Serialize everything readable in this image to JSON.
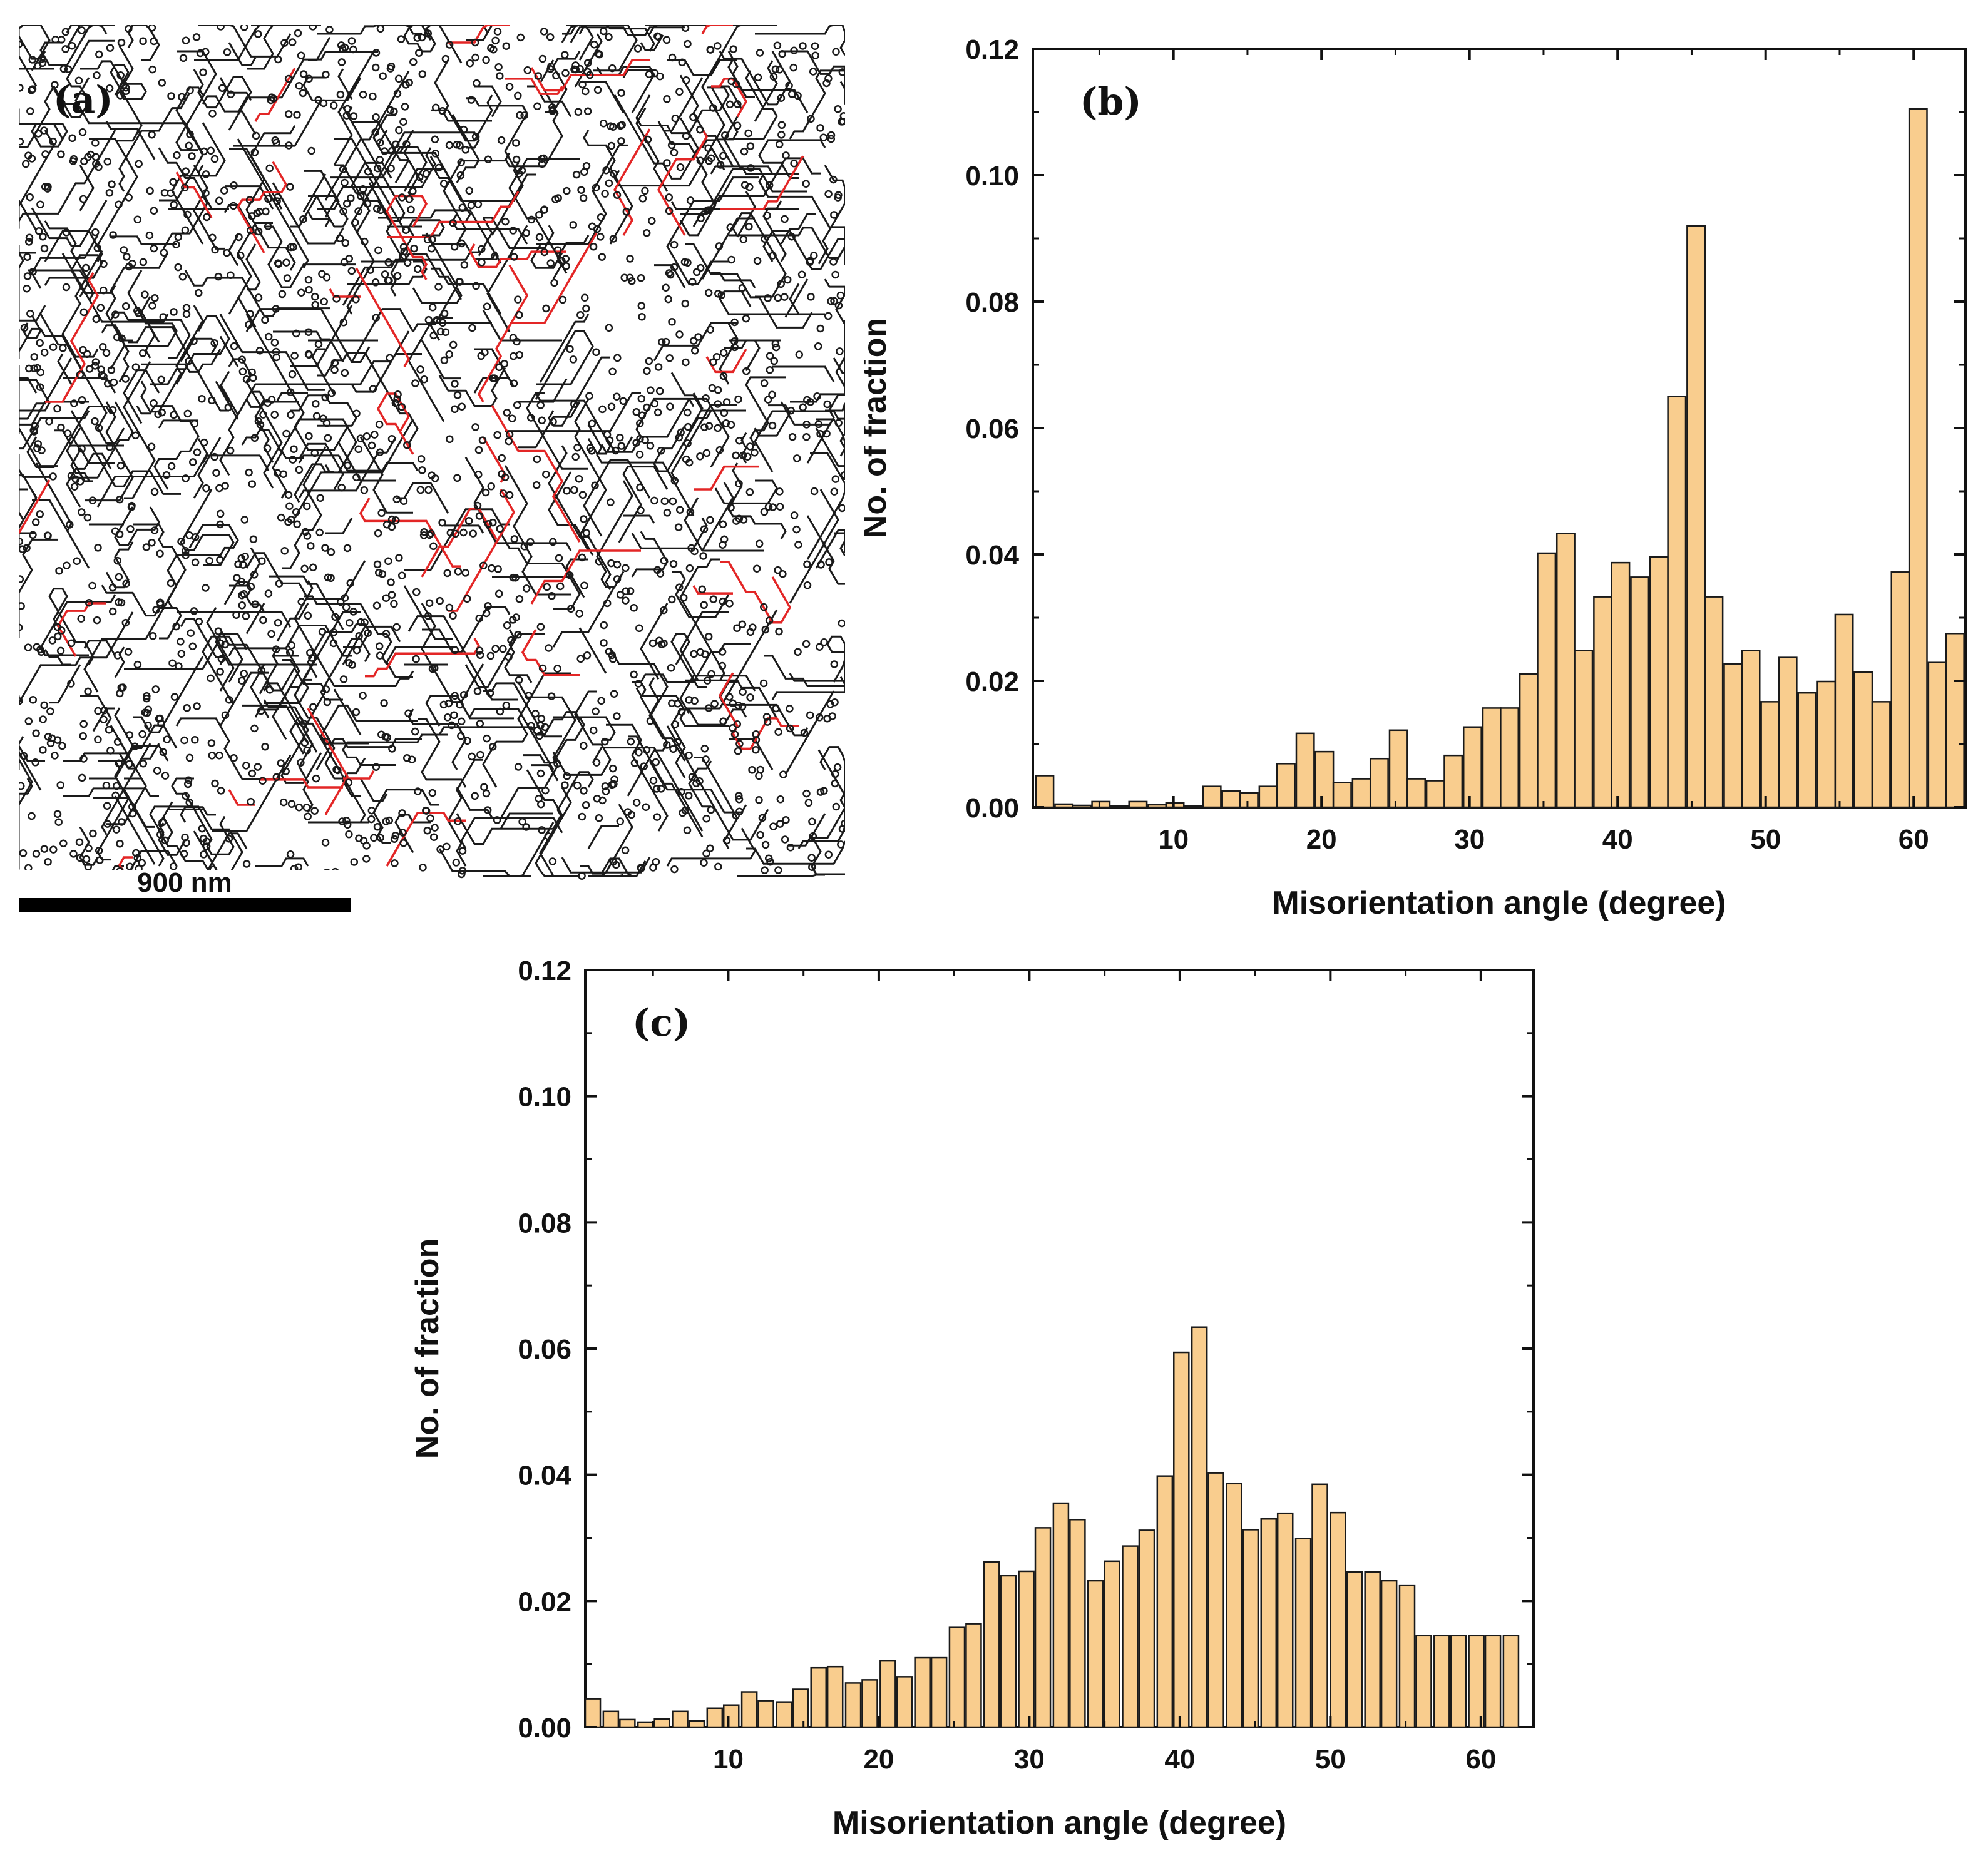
{
  "panel_a": {
    "label": "(a)",
    "scale_bar_label": "900 nm",
    "colors": {
      "boundary": "#1a1a1a",
      "twin_boundary": "#e32626",
      "background": "#ffffff"
    }
  },
  "chart_data": [
    {
      "id": "b",
      "type": "bar",
      "panel_label": "(b)",
      "xlabel": "Misorientation angle (degree)",
      "ylabel": "No. of fraction",
      "xlim": [
        0.5,
        63.5
      ],
      "ylim": [
        0,
        0.12
      ],
      "xticks": [
        10,
        20,
        30,
        40,
        50,
        60
      ],
      "yticks": [
        0.0,
        0.02,
        0.04,
        0.06,
        0.08,
        0.1,
        0.12
      ],
      "bar_width_deg": 1.2,
      "bar_color": "#f9cd8e",
      "bar_edge": "#1a1a1a",
      "x": [
        1.3,
        2.6,
        3.8,
        5.1,
        6.3,
        7.6,
        8.9,
        10.1,
        11.4,
        12.6,
        13.9,
        15.1,
        16.4,
        17.6,
        18.9,
        20.2,
        21.4,
        22.7,
        23.9,
        25.2,
        26.4,
        27.7,
        28.9,
        30.2,
        31.5,
        32.7,
        34.0,
        35.2,
        36.5,
        37.7,
        39.0,
        40.2,
        41.5,
        42.8,
        44.0,
        45.3,
        46.5,
        47.8,
        49.0,
        50.3,
        51.5,
        52.8,
        54.1,
        55.3,
        56.6,
        57.8,
        59.1,
        60.3,
        61.6,
        62.8
      ],
      "values": [
        0.005,
        0.0005,
        0.0003,
        0.0009,
        0.0002,
        0.0009,
        0.0004,
        0.0007,
        0.0002,
        0.0033,
        0.0026,
        0.0023,
        0.0033,
        0.0069,
        0.0117,
        0.0088,
        0.0039,
        0.0045,
        0.0077,
        0.0122,
        0.0045,
        0.0042,
        0.0082,
        0.0127,
        0.0157,
        0.0157,
        0.0211,
        0.0402,
        0.0433,
        0.0248,
        0.0333,
        0.0387,
        0.0364,
        0.0396,
        0.065,
        0.092,
        0.0333,
        0.0227,
        0.0248,
        0.0167,
        0.0237,
        0.0181,
        0.0199,
        0.0305,
        0.0214,
        0.0167,
        0.0372,
        0.1105,
        0.0229,
        0.0275
      ]
    },
    {
      "id": "c",
      "type": "bar",
      "panel_label": "(c)",
      "xlabel": "Misorientation angle (degree)",
      "ylabel": "No. of fraction",
      "xlim": [
        0.5,
        63.5
      ],
      "ylim": [
        0,
        0.12
      ],
      "xticks": [
        10,
        20,
        30,
        40,
        50,
        60
      ],
      "yticks": [
        0.0,
        0.02,
        0.04,
        0.06,
        0.08,
        0.1,
        0.12
      ],
      "bar_width_deg": 1.0,
      "bar_color": "#f9cd8e",
      "bar_edge": "#1a1a1a",
      "x": [
        1.0,
        2.2,
        3.3,
        4.5,
        5.6,
        6.8,
        7.9,
        9.1,
        10.2,
        11.4,
        12.5,
        13.7,
        14.8,
        16.0,
        17.1,
        18.3,
        19.4,
        20.6,
        21.7,
        22.9,
        24.0,
        25.2,
        26.3,
        27.5,
        28.6,
        29.8,
        30.9,
        32.1,
        33.2,
        34.4,
        35.5,
        36.7,
        37.8,
        39.0,
        40.1,
        41.3,
        42.4,
        43.6,
        44.7,
        45.9,
        47.0,
        48.2,
        49.3,
        50.5,
        51.6,
        52.8,
        53.9,
        55.1,
        56.2,
        57.4,
        58.5,
        59.7,
        60.8,
        62.0
      ],
      "values": [
        0.0045,
        0.0025,
        0.0012,
        0.0008,
        0.0013,
        0.0025,
        0.001,
        0.003,
        0.0035,
        0.0056,
        0.0042,
        0.004,
        0.006,
        0.0094,
        0.0096,
        0.007,
        0.0075,
        0.0105,
        0.008,
        0.011,
        0.011,
        0.0158,
        0.0164,
        0.0262,
        0.024,
        0.0247,
        0.0316,
        0.0355,
        0.0329,
        0.0232,
        0.0263,
        0.0287,
        0.0312,
        0.0398,
        0.0594,
        0.0634,
        0.0403,
        0.0386,
        0.0313,
        0.033,
        0.0339,
        0.0299,
        0.0385,
        0.034,
        0.0246,
        0.0246,
        0.0232,
        0.0225,
        0.0145,
        0.0145,
        0.0145,
        0.0145,
        0.0145,
        0.0145
      ]
    }
  ]
}
